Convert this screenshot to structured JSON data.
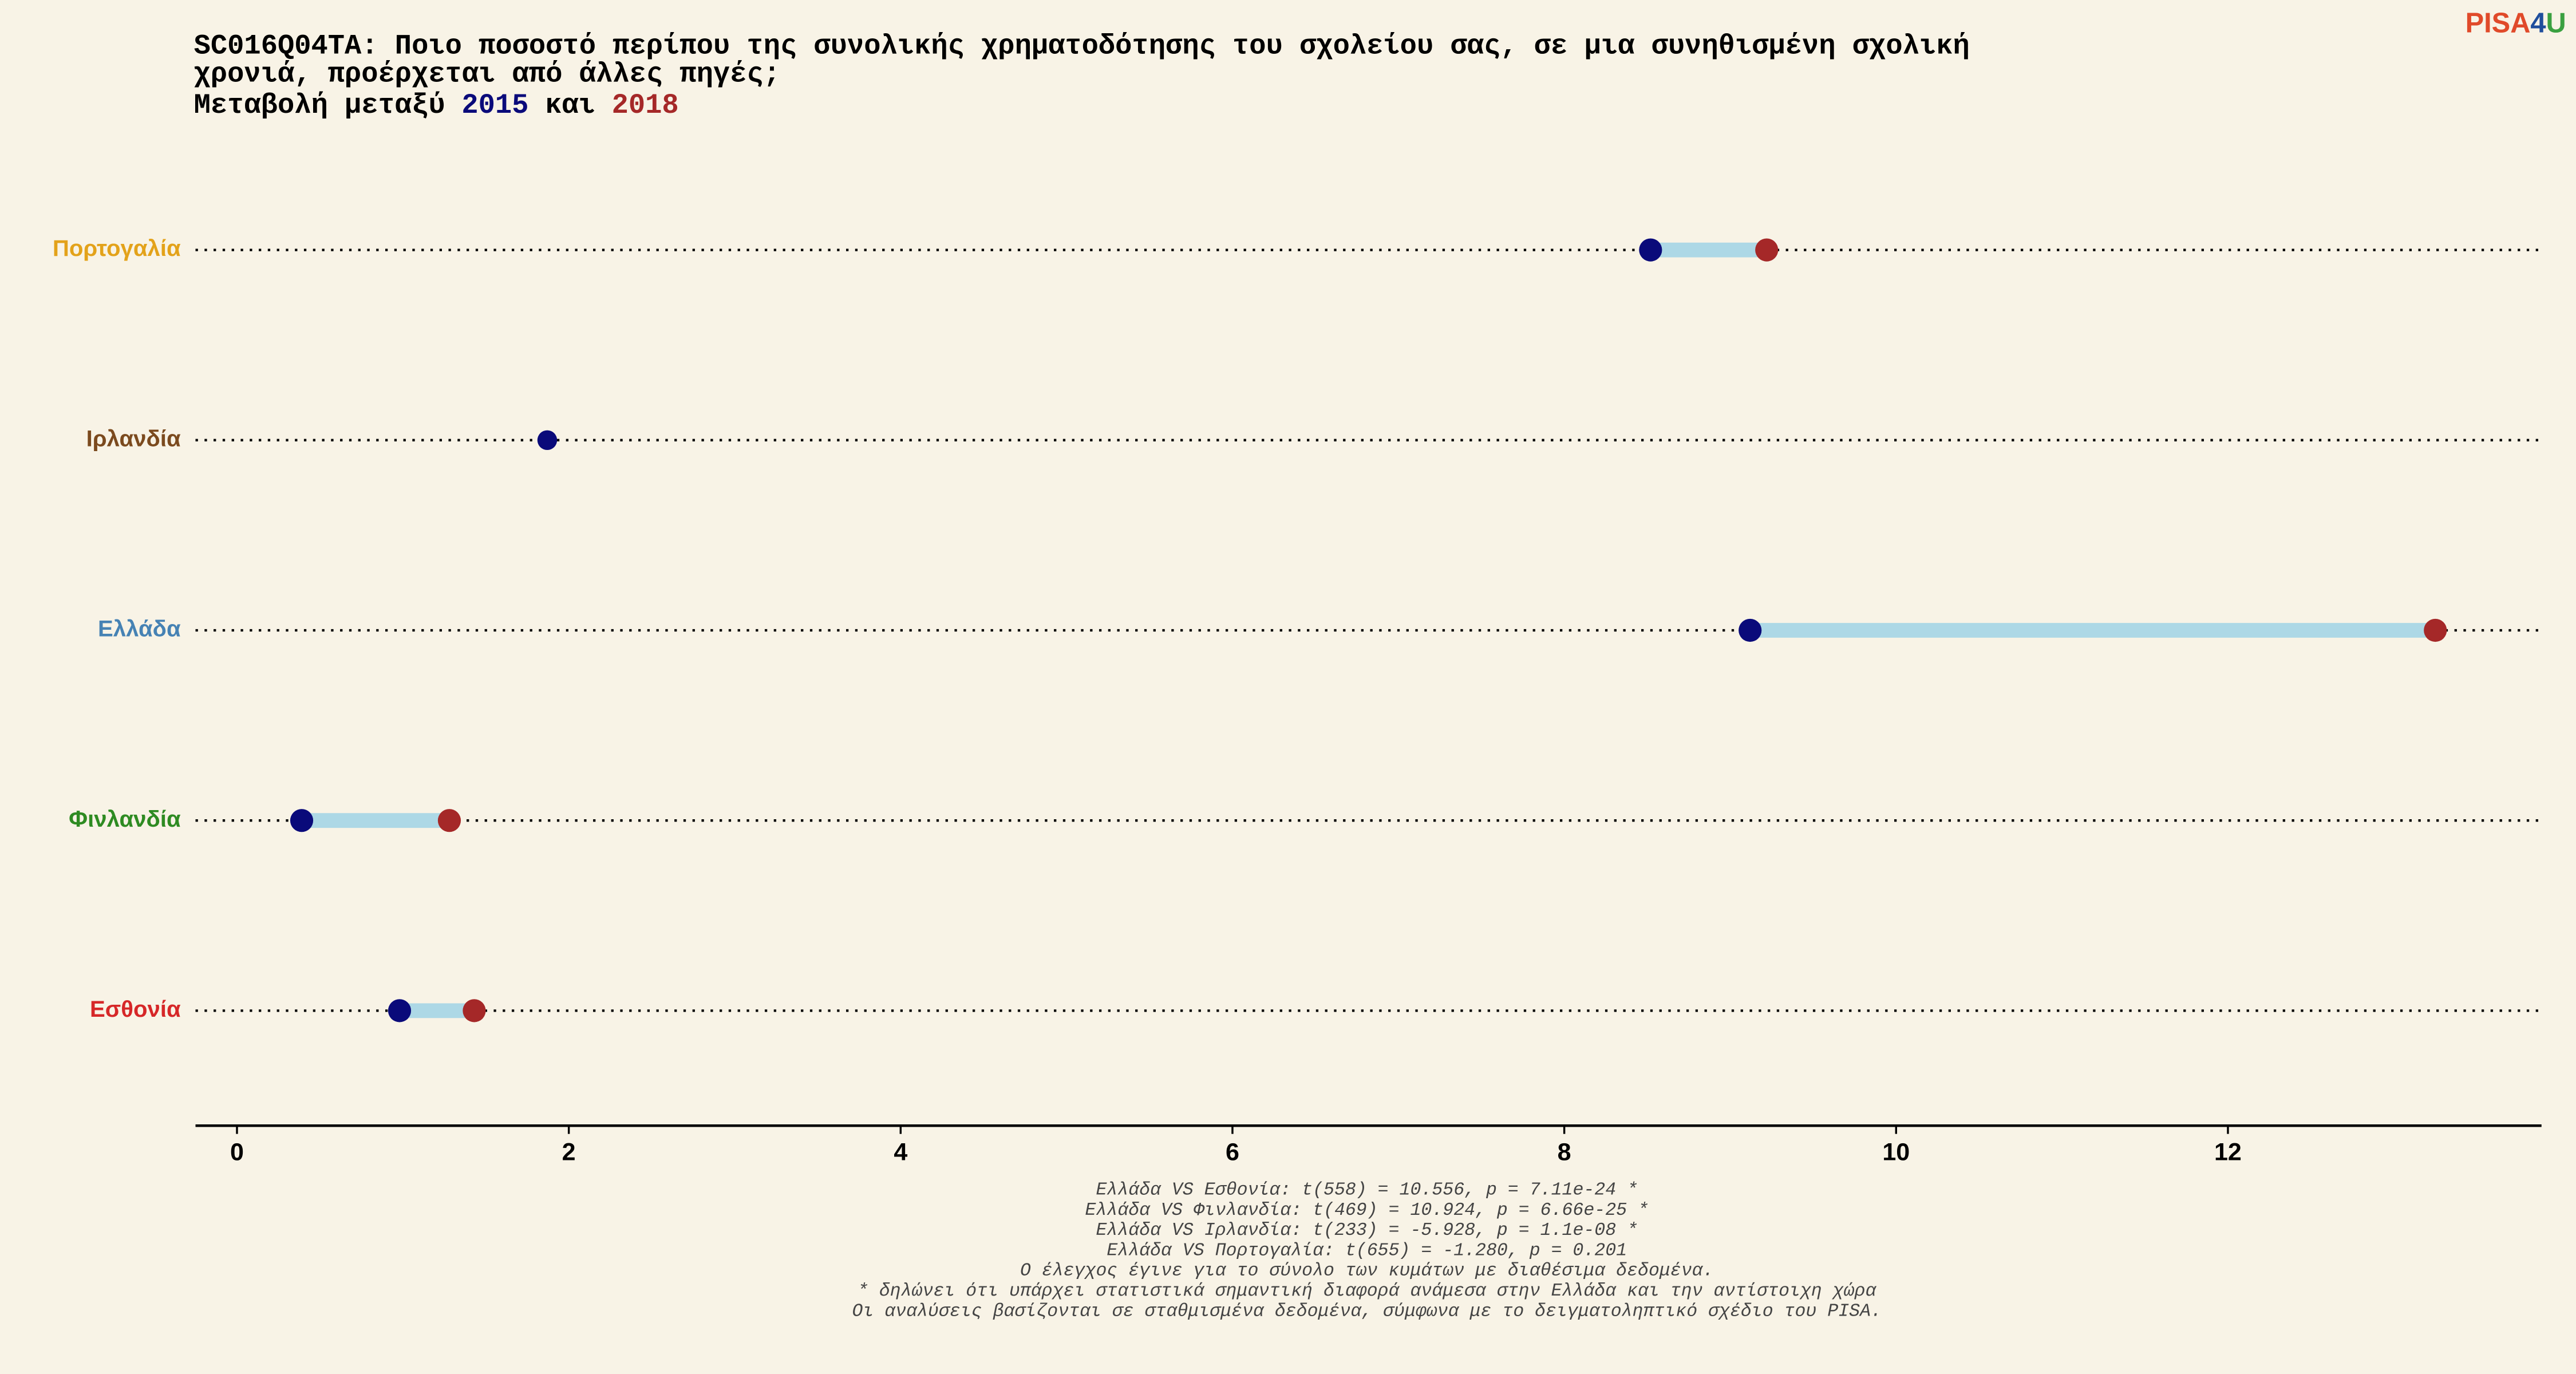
{
  "chart_data": {
    "type": "dumbbell",
    "title": [
      "SC016Q04TA: Ποιο ποσοστό περίπου της συνολικής χρηματοδότησης του σχολείου σας, σε μια συνηθισμένη σχολική",
      "χρονιά, προέρχεται από άλλες πηγές;"
    ],
    "subtitle_parts": [
      "Μεταβολή μεταξύ",
      "και"
    ],
    "categories": [
      "Πορτογαλία",
      "Ιρλανδία",
      "Ελλάδα",
      "Φινλανδία",
      "Εσθονία"
    ],
    "category_colors": [
      "#e3a21a",
      "#7b4a1e",
      "#4682b4",
      "#2e8b22",
      "#d62728"
    ],
    "series": [
      {
        "name": "2015",
        "color": "#0a0a7a",
        "values": [
          8.52,
          1.87,
          9.12,
          0.39,
          0.98
        ]
      },
      {
        "name": "2018",
        "color": "#a52828",
        "values": [
          9.22,
          null,
          13.25,
          1.28,
          1.43
        ]
      }
    ],
    "connector_color": "#add8e6",
    "xlim": [
      -0.25,
      13.89
    ],
    "xticks": [
      0,
      2,
      4,
      6,
      8,
      10,
      12
    ],
    "footnotes": [
      "Ελλάδα VS Εσθονία: t(558) = 10.556, p = 7.11e-24 *",
      "Ελλάδα VS Φινλανδία: t(469) = 10.924, p = 6.66e-25 *",
      "Ελλάδα VS Ιρλανδία: t(233) = -5.928, p = 1.1e-08 *",
      "Ελλάδα VS Πορτογαλία: t(655) = -1.280, p = 0.201",
      "Ο έλεγχος έγινε για το σύνολο των κυμάτων με διαθέσιμα δεδομένα.",
      "* δηλώνει ότι υπάρχει στατιστικά σημαντική διαφορά ανάμεσα στην Ελλάδα και την αντίστοιχη χώρα",
      "Οι αναλύσεις βασίζονται σε σταθμισμένα δεδομένα, σύμφωνα με το δειγματοληπτικό σχέδιο του PISA."
    ],
    "logo": {
      "parts": [
        "PISA",
        "4",
        "U"
      ],
      "colors": [
        "#e04a2a",
        "#1f4e9c",
        "#3aa040"
      ]
    }
  }
}
